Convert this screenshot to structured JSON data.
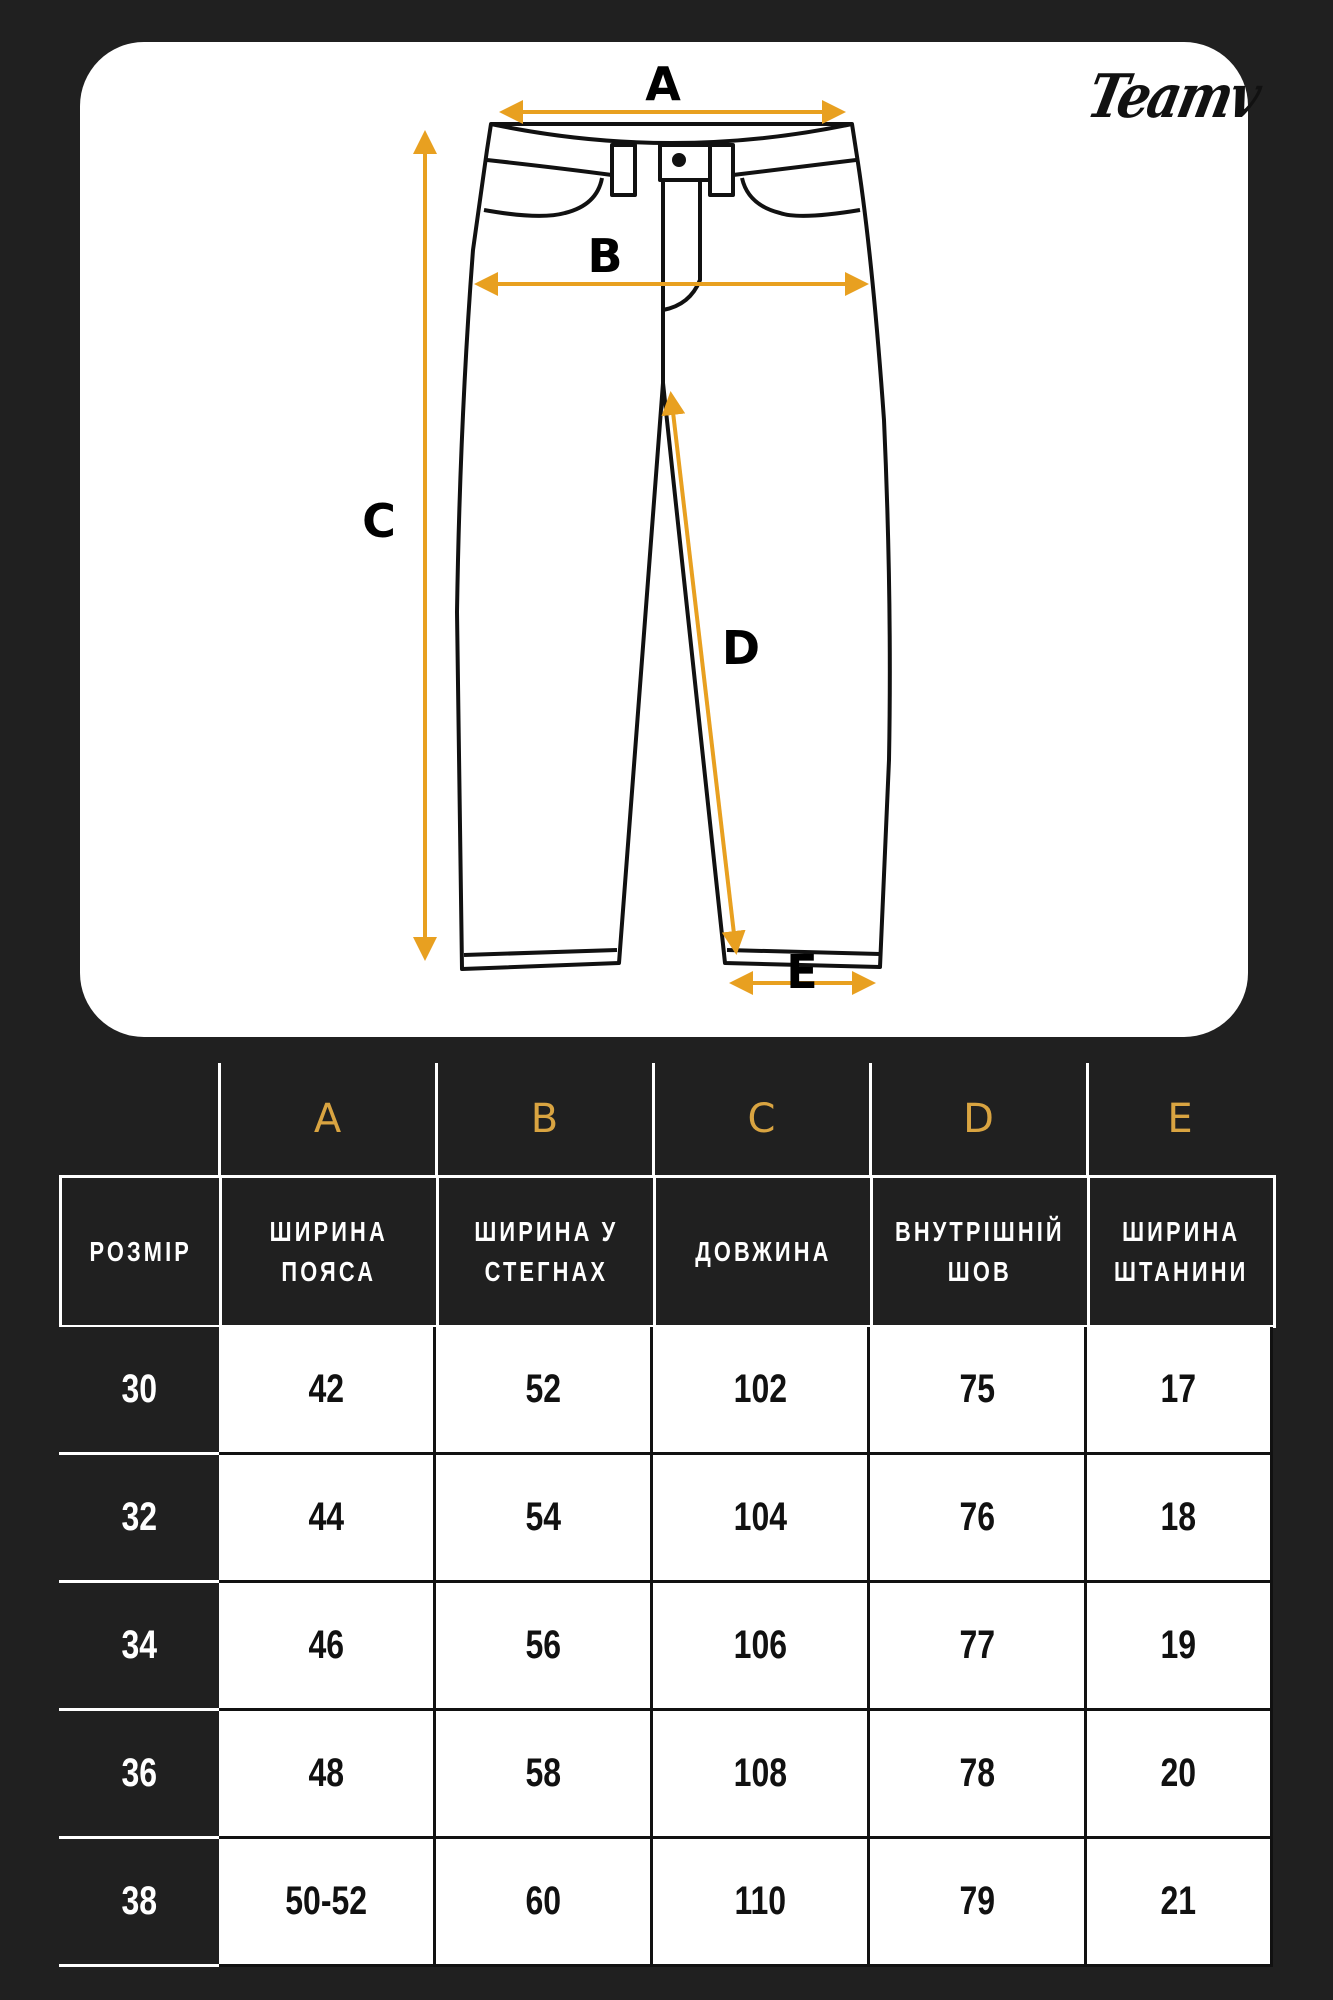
{
  "brand": {
    "logo_text": "Teamv"
  },
  "diagram": {
    "labels": [
      "A",
      "B",
      "C",
      "D",
      "E"
    ],
    "arrow_color": "#E8A020",
    "outline_color": "#111111"
  },
  "table": {
    "letters": [
      "A",
      "B",
      "C",
      "D",
      "E"
    ],
    "headers": [
      "РОЗМІР",
      "ШИРИНА\nПОЯСА",
      "ШИРИНА У\nСТЕГНАХ",
      "ДОВЖИНА",
      "ВНУТРІШНІЙ\nШОВ",
      "ШИРИНА\nШТАНИНИ"
    ],
    "letter_color": "#D9A441",
    "rows": [
      [
        "30",
        "42",
        "52",
        "102",
        "75",
        "17"
      ],
      [
        "32",
        "44",
        "54",
        "104",
        "76",
        "18"
      ],
      [
        "34",
        "46",
        "56",
        "106",
        "77",
        "19"
      ],
      [
        "36",
        "48",
        "58",
        "108",
        "78",
        "20"
      ],
      [
        "38",
        "50-52",
        "60",
        "110",
        "79",
        "21"
      ]
    ]
  }
}
